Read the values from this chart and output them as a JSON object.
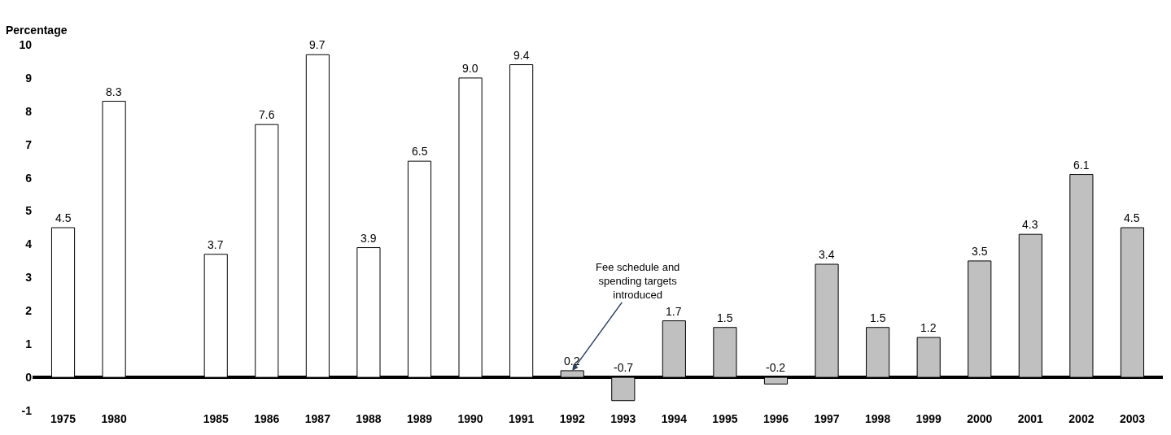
{
  "chart_data": {
    "type": "bar",
    "ylabel": "Percentage",
    "categories": [
      "1975",
      "1980",
      null,
      "1985",
      "1986",
      "1987",
      "1988",
      "1989",
      "1990",
      "1991",
      "1992",
      "1993",
      "1994",
      "1995",
      "1996",
      "1997",
      "1998",
      "1999",
      "2000",
      "2001",
      "2002",
      "2003"
    ],
    "values": [
      4.5,
      8.3,
      null,
      3.7,
      7.6,
      9.7,
      3.9,
      6.5,
      9.0,
      9.4,
      0.2,
      -0.7,
      1.7,
      1.5,
      -0.2,
      3.4,
      1.5,
      1.2,
      3.5,
      4.3,
      6.1,
      4.5
    ],
    "value_labels": [
      "4.5",
      "8.3",
      null,
      "3.7",
      "7.6",
      "9.7",
      "3.9",
      "6.5",
      "9.0",
      "9.4",
      "0.2",
      "-0.7",
      "1.7",
      "1.5",
      "-0.2",
      "3.4",
      "1.5",
      "1.2",
      "3.5",
      "4.3",
      "6.1",
      "4.5"
    ],
    "colors": [
      "#ffffff",
      "#ffffff",
      "#ffffff",
      "#ffffff",
      "#ffffff",
      "#ffffff",
      "#ffffff",
      "#ffffff",
      "#ffffff",
      "#ffffff",
      "#c0c0c0",
      "#c0c0c0",
      "#c0c0c0",
      "#c0c0c0",
      "#c0c0c0",
      "#c0c0c0",
      "#c0c0c0",
      "#c0c0c0",
      "#c0c0c0",
      "#c0c0c0",
      "#c0c0c0",
      "#c0c0c0"
    ],
    "ylim": [
      -1,
      10
    ],
    "yticks": [
      -1,
      0,
      1,
      2,
      3,
      4,
      5,
      6,
      7,
      8,
      9,
      10
    ],
    "legend": false,
    "annotations": [
      {
        "text": "Fee schedule and\nspending targets\nintroduced",
        "x": "1992",
        "y": 0.2
      }
    ]
  }
}
